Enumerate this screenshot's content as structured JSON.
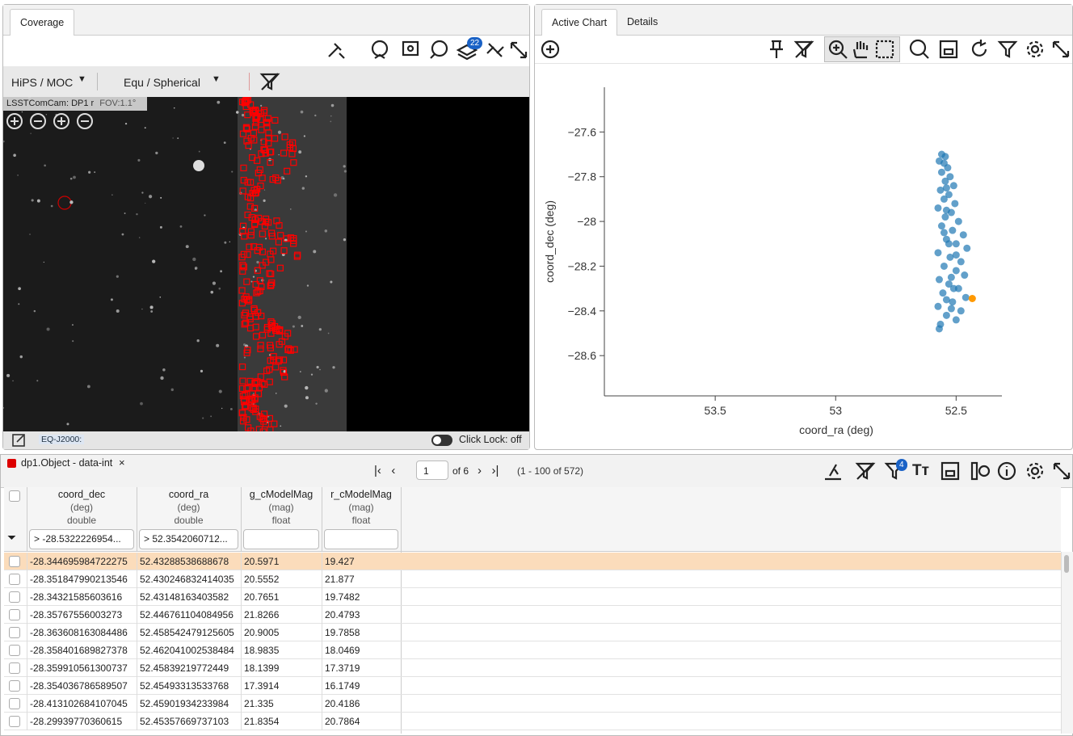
{
  "coverage": {
    "tab": "Coverage",
    "hips_menu": "HiPS / MOC",
    "proj_menu": "Equ / Spherical",
    "image_title": "LSSTComCam: DP1 r",
    "fov": "FOV:1.1°",
    "layers_badge": "22",
    "coord_sys": "EQ-J2000:",
    "click_lock": "Click Lock: off"
  },
  "chart_panel": {
    "tabs": [
      "Active Chart",
      "Details"
    ]
  },
  "chart_data": {
    "type": "scatter",
    "x_label": "coord_ra (deg)",
    "y_label": "coord_dec (deg)",
    "xlim": [
      53.96,
      52.31
    ],
    "ylim": [
      -28.78,
      -27.4
    ],
    "xticks": [
      53.5,
      53,
      52.5
    ],
    "yticks": [
      {
        "value": -27.6,
        "label": "−27.6"
      },
      {
        "value": -27.8,
        "label": "−27.8"
      },
      {
        "value": -28,
        "label": "−28"
      },
      {
        "value": -28.2,
        "label": "−28.2"
      },
      {
        "value": -28.4,
        "label": "−28.4"
      },
      {
        "value": -28.6,
        "label": "−28.6"
      }
    ],
    "series": [
      {
        "color": "#1f77b4",
        "x": [
          52.56,
          52.545,
          52.57,
          52.55,
          52.535,
          52.56,
          52.525,
          52.545,
          52.51,
          52.565,
          52.53,
          52.55,
          52.505,
          52.575,
          52.52,
          52.545,
          52.49,
          52.56,
          52.515,
          52.47,
          52.54,
          52.5,
          52.455,
          52.575,
          52.525,
          52.48,
          52.55,
          52.5,
          52.465,
          52.57,
          52.53,
          52.49,
          52.555,
          52.46,
          52.515,
          52.575,
          52.48,
          52.54,
          52.5,
          52.565,
          52.57,
          52.54,
          52.55,
          52.5,
          52.52,
          52.54,
          52.51,
          52.53,
          52.54,
          52.52
        ],
        "values": [
          -27.7,
          -27.71,
          -27.73,
          -27.74,
          -27.76,
          -27.78,
          -27.8,
          -27.82,
          -27.84,
          -27.86,
          -27.88,
          -27.9,
          -27.92,
          -27.94,
          -27.96,
          -27.98,
          -28,
          -28.02,
          -28.04,
          -28.06,
          -28.08,
          -28.1,
          -28.12,
          -28.14,
          -28.16,
          -28.18,
          -28.2,
          -28.22,
          -28.24,
          -28.26,
          -28.28,
          -28.3,
          -28.32,
          -28.34,
          -28.36,
          -28.38,
          -28.4,
          -28.42,
          -28.44,
          -28.46,
          -28.48,
          -27.85,
          -28.05,
          -28.15,
          -28.25,
          -28.35,
          -28.3,
          -28.1,
          -27.95,
          -28.39
        ]
      },
      {
        "color": "#ff9900",
        "x": [
          52.4329
        ],
        "values": [
          -28.3447
        ]
      }
    ]
  },
  "table": {
    "tab": "dp1.Object - data-int",
    "page": "1",
    "of_pages": "of 6",
    "range": "(1 - 100 of 572)",
    "filter_badge": "4",
    "columns": [
      {
        "name": "coord_dec",
        "unit": "(deg)",
        "type": "double",
        "filter": "> -28.5322226954..."
      },
      {
        "name": "coord_ra",
        "unit": "(deg)",
        "type": "double",
        "filter": "> 52.3542060712..."
      },
      {
        "name": "g_cModelMag",
        "unit": "(mag)",
        "type": "float"
      },
      {
        "name": "r_cModelMag",
        "unit": "(mag)",
        "type": "float"
      }
    ],
    "rows": [
      [
        "-28.344695984722275",
        "52.43288538688678",
        "20.5971",
        "19.427"
      ],
      [
        "-28.351847990213546",
        "52.430246832414035",
        "20.5552",
        "21.877"
      ],
      [
        "-28.34321585603616",
        "52.43148163403582",
        "20.7651",
        "19.7482"
      ],
      [
        "-28.35767556003273",
        "52.446761104084956",
        "21.8266",
        "20.4793"
      ],
      [
        "-28.363608163084486",
        "52.458542479125605",
        "20.9005",
        "19.7858"
      ],
      [
        "-28.358401689827378",
        "52.462041002538484",
        "18.9835",
        "18.0469"
      ],
      [
        "-28.359910561300737",
        "52.45839219772449",
        "18.1399",
        "17.3719"
      ],
      [
        "-28.354036786589507",
        "52.45493313533768",
        "17.3914",
        "16.1749"
      ],
      [
        "-28.413102684107045",
        "52.45901934233984",
        "21.335",
        "20.4186"
      ],
      [
        "-28.29939770360615",
        "52.45357669737103",
        "21.8354",
        "20.7864"
      ]
    ]
  }
}
